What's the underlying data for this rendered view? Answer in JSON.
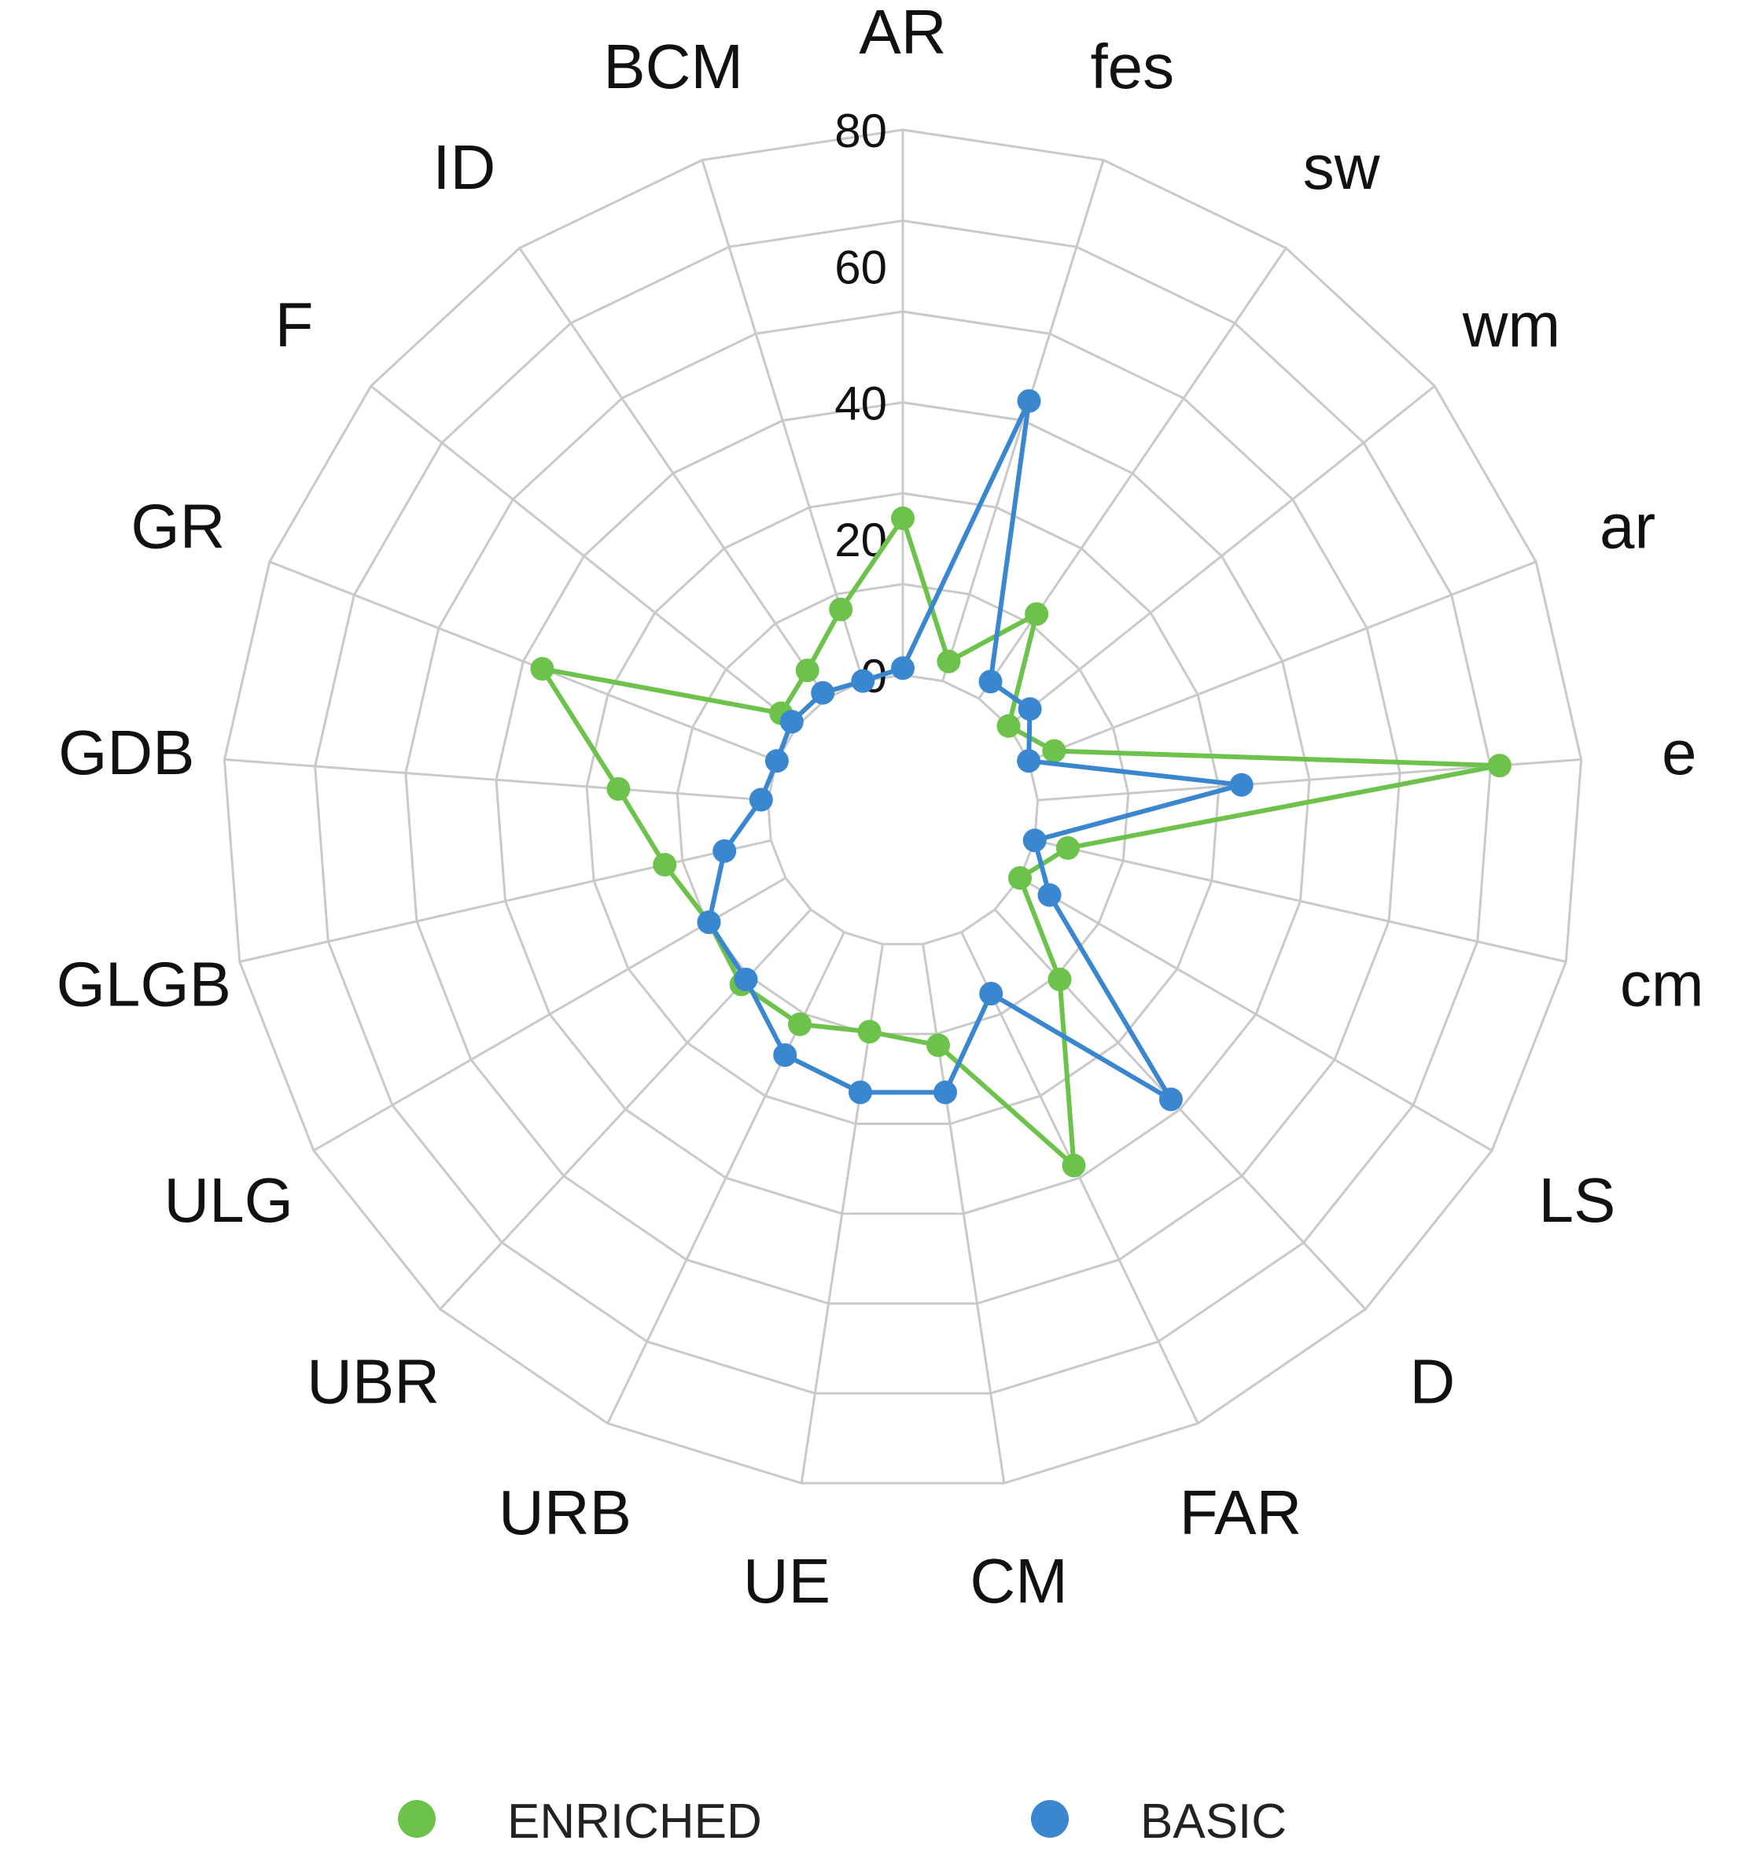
{
  "chart_data": {
    "type": "radar",
    "categories": [
      "AR",
      "fes",
      "sw",
      "wm",
      "ar",
      "e",
      "cm",
      "LS",
      "D",
      "FAR",
      "CM",
      "UE",
      "URB",
      "UBR",
      "ULG",
      "GLGB",
      "GDB",
      "GR",
      "F",
      "ID",
      "BCM"
    ],
    "rlim": [
      0,
      80
    ],
    "rticks": [
      "0",
      "20",
      "40",
      "60",
      "80"
    ],
    "grid": true,
    "legend_position": "bottom",
    "series": [
      {
        "name": "ENRICHED",
        "color": "#6CC24A",
        "values": [
          23,
          3,
          15,
          0,
          4,
          68,
          5,
          0,
          14,
          38,
          15,
          13,
          15,
          15,
          13,
          16,
          22,
          37,
          3,
          5,
          11
        ]
      },
      {
        "name": "BASIC",
        "color": "#3A87D0",
        "values": [
          1,
          43,
          3,
          4,
          0,
          30,
          0,
          5,
          38,
          10,
          22,
          22,
          20,
          14,
          13,
          7,
          1,
          0,
          1,
          1,
          0
        ]
      }
    ]
  }
}
